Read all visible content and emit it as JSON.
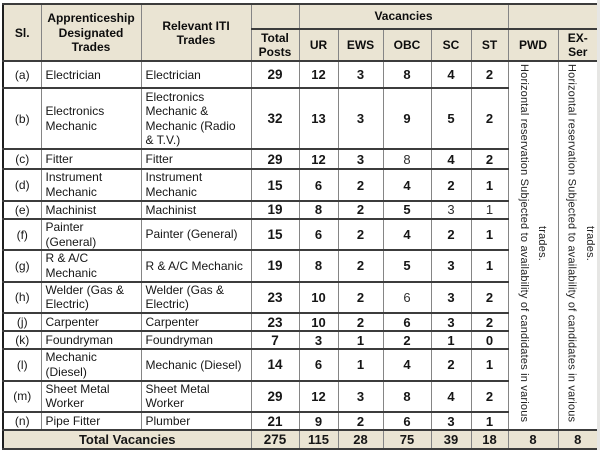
{
  "colors": {
    "header_bg": "#EAE4D3",
    "border_dark": "#3C3C3C",
    "border_light": "#858585",
    "text": "#161616",
    "number_text": "#000000"
  },
  "table": {
    "header": {
      "sl": "Sl.",
      "trades": "Apprenticeship Designated Trades",
      "iti": "Relevant ITI Trades",
      "total_posts": "Total Posts",
      "vacancies": "Vacancies",
      "category_cols": [
        "UR",
        "EWS",
        "OBC",
        "SC",
        "ST"
      ],
      "pwd": "PWD",
      "ex_ser": "EX-Ser"
    },
    "pwd_note": "Horizontal reservation Subjected to availability of candidates in various trades.",
    "ex_ser_note": "Horizontal reservation Subjected to availability of candidates in various trades.",
    "rows": [
      {
        "sl": "(a)",
        "trade": "Electrician",
        "iti": "Electrician",
        "total": "29",
        "ur": "12",
        "ews": "3",
        "obc": "8",
        "sc": "4",
        "st": "2",
        "light": []
      },
      {
        "sl": "(b)",
        "trade": "Electronics Mechanic",
        "iti": "Electronics Mechanic & Mechanic (Radio & T.V.)",
        "total": "32",
        "ur": "13",
        "ews": "3",
        "obc": "9",
        "sc": "5",
        "st": "2",
        "light": []
      },
      {
        "sl": "(c)",
        "trade": "Fitter",
        "iti": "Fitter",
        "total": "29",
        "ur": "12",
        "ews": "3",
        "obc": "8",
        "sc": "4",
        "st": "2",
        "light": [
          "obc"
        ]
      },
      {
        "sl": "(d)",
        "trade": "Instrument Mechanic",
        "iti": "Instrument Mechanic",
        "total": "15",
        "ur": "6",
        "ews": "2",
        "obc": "4",
        "sc": "2",
        "st": "1",
        "light": []
      },
      {
        "sl": "(e)",
        "trade": "Machinist",
        "iti": "Machinist",
        "total": "19",
        "ur": "8",
        "ews": "2",
        "obc": "5",
        "sc": "3",
        "st": "1",
        "light": [
          "sc",
          "st"
        ]
      },
      {
        "sl": "(f)",
        "trade": "Painter (General)",
        "iti": "Painter (General)",
        "total": "15",
        "ur": "6",
        "ews": "2",
        "obc": "4",
        "sc": "2",
        "st": "1",
        "light": []
      },
      {
        "sl": "(g)",
        "trade": "R & A/C Mechanic",
        "iti": "R & A/C Mechanic",
        "total": "19",
        "ur": "8",
        "ews": "2",
        "obc": "5",
        "sc": "3",
        "st": "1",
        "light": []
      },
      {
        "sl": "(h)",
        "trade": "Welder (Gas & Electric)",
        "iti": "Welder (Gas & Electric)",
        "total": "23",
        "ur": "10",
        "ews": "2",
        "obc": "6",
        "sc": "3",
        "st": "2",
        "light": [
          "obc"
        ]
      },
      {
        "sl": "(j)",
        "trade": "Carpenter",
        "iti": "Carpenter",
        "total": "23",
        "ur": "10",
        "ews": "2",
        "obc": "6",
        "sc": "3",
        "st": "2",
        "light": []
      },
      {
        "sl": "(k)",
        "trade": "Foundryman",
        "iti": "Foundryman",
        "total": "7",
        "ur": "3",
        "ews": "1",
        "obc": "2",
        "sc": "1",
        "st": "0",
        "light": []
      },
      {
        "sl": "(l)",
        "trade": "Mechanic (Diesel)",
        "iti": "Mechanic (Diesel)",
        "total": "14",
        "ur": "6",
        "ews": "1",
        "obc": "4",
        "sc": "2",
        "st": "1",
        "light": []
      },
      {
        "sl": "(m)",
        "trade": "Sheet Metal Worker",
        "iti": "Sheet Metal Worker",
        "total": "29",
        "ur": "12",
        "ews": "3",
        "obc": "8",
        "sc": "4",
        "st": "2",
        "light": []
      },
      {
        "sl": "(n)",
        "trade": "Pipe Fitter",
        "iti": "Plumber",
        "total": "21",
        "ur": "9",
        "ews": "2",
        "obc": "6",
        "sc": "3",
        "st": "1",
        "light": []
      }
    ],
    "total_row": {
      "label": "Total Vacancies",
      "total": "275",
      "ur": "115",
      "ews": "28",
      "obc": "75",
      "sc": "39",
      "st": "18",
      "pwd": "8",
      "ex_ser": "8"
    }
  }
}
